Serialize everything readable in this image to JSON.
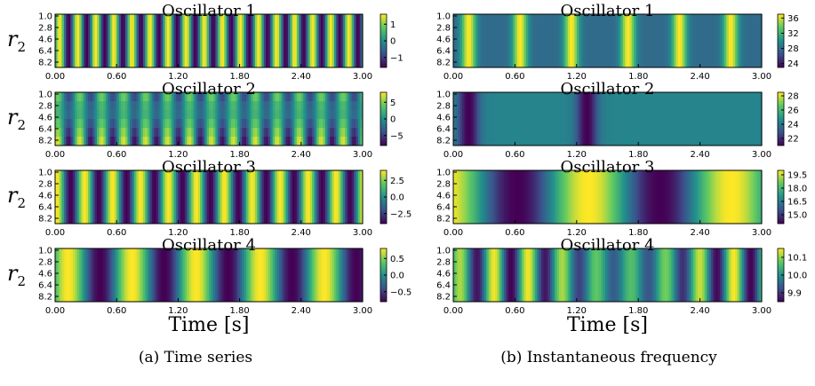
{
  "captions": {
    "left": "(a) Time series",
    "right": "(b) Instantaneous frequency"
  },
  "colors": {
    "colormap": "viridis",
    "stops": [
      "#440154",
      "#3b528b",
      "#21908d",
      "#5dc963",
      "#fde725"
    ]
  },
  "chart_data": [
    {
      "type": "heatmap",
      "panel": "a",
      "title": "Oscillator 1",
      "ylabel": "r_2",
      "xlabel": "",
      "xticks": [
        "0.00",
        "0.60",
        "1.20",
        "1.80",
        "2.40",
        "3.00"
      ],
      "yticks": [
        "1.0",
        "2.8",
        "4.6",
        "6.4",
        "8.2"
      ],
      "xlim": [
        0,
        3
      ],
      "ylim": [
        1.0,
        10.0
      ],
      "colorbar": {
        "ticks": [
          "1",
          "0",
          "−1"
        ],
        "tick_values": [
          1,
          0,
          -1
        ],
        "range": [
          -1.6,
          1.6
        ]
      },
      "pattern": {
        "kind": "oscillation",
        "freq_hz": 5.67,
        "phase": 0.0,
        "sharpness": 1.0,
        "y_effect": 0.0
      }
    },
    {
      "type": "heatmap",
      "panel": "a",
      "title": "Oscillator 2",
      "ylabel": "r_2",
      "xlabel": "",
      "xticks": [
        "0.00",
        "0.60",
        "1.20",
        "1.80",
        "2.40",
        "3.00"
      ],
      "yticks": [
        "1.0",
        "2.8",
        "4.6",
        "6.4",
        "8.2"
      ],
      "xlim": [
        0,
        3
      ],
      "ylim": [
        1.0,
        10.0
      ],
      "colorbar": {
        "ticks": [
          "5",
          "0",
          "−5"
        ],
        "tick_values": [
          5,
          0,
          -5
        ],
        "range": [
          -8,
          8
        ]
      },
      "pattern": {
        "kind": "oscillation",
        "freq_hz": 4.67,
        "phase": 0.8,
        "sharpness": 1.0,
        "y_effect": 1.0
      }
    },
    {
      "type": "heatmap",
      "panel": "a",
      "title": "Oscillator 3",
      "ylabel": "r_2",
      "xlabel": "",
      "xticks": [
        "0.00",
        "0.60",
        "1.20",
        "1.80",
        "2.40",
        "3.00"
      ],
      "yticks": [
        "1.0",
        "2.8",
        "4.6",
        "6.4",
        "8.2"
      ],
      "xlim": [
        0,
        3
      ],
      "ylim": [
        1.0,
        10.0
      ],
      "colorbar": {
        "ticks": [
          "2.5",
          "0.0",
          "−2.5"
        ],
        "tick_values": [
          2.5,
          0,
          -2.5
        ],
        "range": [
          -4,
          4
        ]
      },
      "pattern": {
        "kind": "oscillation",
        "freq_hz": 3.67,
        "phase": 1.2,
        "sharpness": 1.0,
        "y_effect": 0.0
      }
    },
    {
      "type": "heatmap",
      "panel": "a",
      "title": "Oscillator 4",
      "ylabel": "r_2",
      "xlabel": "Time [s]",
      "xticks": [
        "0.00",
        "0.60",
        "1.20",
        "1.80",
        "2.40",
        "3.00"
      ],
      "yticks": [
        "1.0",
        "2.8",
        "4.6",
        "6.4",
        "8.2"
      ],
      "xlim": [
        0,
        3
      ],
      "ylim": [
        1.0,
        10.0
      ],
      "colorbar": {
        "ticks": [
          "0.5",
          "0.0",
          "−0.5"
        ],
        "tick_values": [
          0.5,
          0,
          -0.5
        ],
        "range": [
          -0.8,
          0.8
        ]
      },
      "pattern": {
        "kind": "oscillation",
        "freq_hz": 1.6,
        "phase": 0.3,
        "sharpness": 1.0,
        "y_effect": 0.0
      }
    },
    {
      "type": "heatmap",
      "panel": "b",
      "title": "Oscillator 1",
      "ylabel": "",
      "xlabel": "",
      "xticks": [
        "0.00",
        "0.60",
        "1.20",
        "1.80",
        "2.40",
        "3.00"
      ],
      "yticks": [
        "1.0",
        "2.8",
        "4.6",
        "6.4",
        "8.2"
      ],
      "xlim": [
        0,
        3
      ],
      "ylim": [
        1.0,
        10.0
      ],
      "colorbar": {
        "ticks": [
          "36",
          "32",
          "28",
          "24"
        ],
        "tick_values": [
          36,
          32,
          28,
          24
        ],
        "range": [
          23,
          37
        ]
      },
      "pattern": {
        "kind": "peaks",
        "peaks": [
          0.15,
          0.65,
          1.15,
          1.7,
          2.2,
          2.7
        ],
        "width": 0.07,
        "base": 0.35,
        "y_effect": 0.0
      }
    },
    {
      "type": "heatmap",
      "panel": "b",
      "title": "Oscillator 2",
      "ylabel": "",
      "xlabel": "",
      "xticks": [
        "0.00",
        "0.60",
        "1.20",
        "1.80",
        "2.40",
        "3.00"
      ],
      "yticks": [
        "1.0",
        "2.8",
        "4.6",
        "6.4",
        "8.2"
      ],
      "xlim": [
        0,
        3
      ],
      "ylim": [
        1.0,
        10.0
      ],
      "colorbar": {
        "ticks": [
          "28",
          "26",
          "24",
          "22"
        ],
        "tick_values": [
          28,
          26,
          24,
          22
        ],
        "range": [
          21,
          28.5
        ]
      },
      "pattern": {
        "kind": "peaks",
        "peaks": [
          0.8,
          1.75,
          2.6
        ],
        "width": 0.12,
        "base": 0.45,
        "troughs": [
          0.15,
          1.3
        ],
        "y_effect": 0.0
      }
    },
    {
      "type": "heatmap",
      "panel": "b",
      "title": "Oscillator 3",
      "ylabel": "",
      "xlabel": "",
      "xticks": [
        "0.00",
        "0.60",
        "1.20",
        "1.80",
        "2.40",
        "3.00"
      ],
      "yticks": [
        "1.0",
        "2.8",
        "4.6",
        "6.4",
        "8.2"
      ],
      "xlim": [
        0,
        3
      ],
      "ylim": [
        1.0,
        10.0
      ],
      "colorbar": {
        "ticks": [
          "19.5",
          "18.0",
          "16.5",
          "15.0"
        ],
        "tick_values": [
          19.5,
          18,
          16.5,
          15
        ],
        "range": [
          14,
          20
        ]
      },
      "pattern": {
        "kind": "oscillation",
        "freq_hz": 0.72,
        "phase": 1.9,
        "sharpness": 0.6,
        "y_effect": 0.0
      }
    },
    {
      "type": "heatmap",
      "panel": "b",
      "title": "Oscillator 4",
      "ylabel": "",
      "xlabel": "Time [s]",
      "xticks": [
        "0.00",
        "0.60",
        "1.20",
        "1.80",
        "2.40",
        "3.00"
      ],
      "yticks": [
        "1.0",
        "2.8",
        "4.6",
        "6.4",
        "8.2"
      ],
      "xlim": [
        0,
        3
      ],
      "ylim": [
        1.0,
        10.0
      ],
      "colorbar": {
        "ticks": [
          "10.1",
          "10.0",
          "9.9"
        ],
        "tick_values": [
          10.1,
          10.0,
          9.9
        ],
        "range": [
          9.85,
          10.15
        ]
      },
      "pattern": {
        "kind": "stripes",
        "freq_hz": 3.0,
        "phase": 0.4,
        "beat_hz": 0.45,
        "y_effect": 0.0
      }
    }
  ]
}
